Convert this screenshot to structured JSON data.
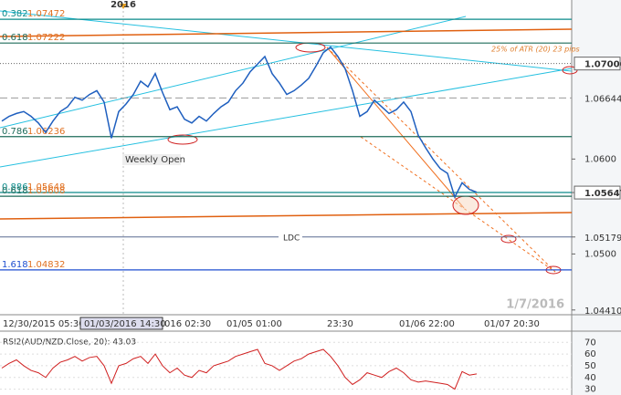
{
  "chart_data": [
    {
      "type": "line",
      "color": "#1f5fbf",
      "values": [
        1.064,
        1.0645,
        1.0648,
        1.065,
        1.0645,
        1.0638,
        1.0628,
        1.064,
        1.065,
        1.0655,
        1.0665,
        1.0662,
        1.0668,
        1.0672,
        1.066,
        1.0622,
        1.065,
        1.0658,
        1.0668,
        1.0682,
        1.0676,
        1.069,
        1.067,
        1.0652,
        1.0655,
        1.0642,
        1.0638,
        1.0645,
        1.064,
        1.0648,
        1.0655,
        1.066,
        1.0672,
        1.068,
        1.0692,
        1.07,
        1.0708,
        1.069,
        1.068,
        1.0668,
        1.0672,
        1.0678,
        1.0685,
        1.0698,
        1.0712,
        1.0718,
        1.0708,
        1.0695,
        1.0672,
        1.0645,
        1.065,
        1.0662,
        1.0655,
        1.0648,
        1.0652,
        1.066,
        1.065,
        1.0625,
        1.0612,
        1.06,
        1.059,
        1.0585,
        1.056,
        1.0575,
        1.0568,
        1.0565
      ],
      "ylim": [
        1.0436,
        1.0756
      ],
      "yticks": [
        {
          "value": 1.06,
          "label": "1.0600"
        },
        {
          "value": 1.05,
          "label": "1.0500"
        }
      ],
      "price_markers": [
        {
          "value": 1.07006,
          "label": "1.07006",
          "boxed": true
        },
        {
          "value": 1.06644,
          "label": "1.06644",
          "boxed": false
        },
        {
          "value": 1.05647,
          "label": "1.05647",
          "boxed": true
        },
        {
          "value": 1.05179,
          "label": "1.05179",
          "boxed": false
        },
        {
          "value": 1.0441,
          "label": "1.04410",
          "boxed": false
        }
      ],
      "levels": [
        {
          "ratio": "0.382",
          "value": 1.07472,
          "label": "1.07472",
          "color": "#0a8a8a"
        },
        {
          "ratio": "0.618",
          "value": 1.07222,
          "label": "1.07222",
          "color": "#1d6b5a"
        },
        {
          "ratio": "0.786",
          "value": 1.06236,
          "label": "1.06236",
          "color": "#1d6b5a"
        },
        {
          "ratio": "0.886",
          "value": 1.05648,
          "label": "1.05648",
          "color": "#0a8a8a"
        },
        {
          "ratio": "0.618",
          "value": 1.05608,
          "label": "1.05608",
          "color": "#1d6b5a"
        },
        {
          "ratio": "1.618",
          "value": 1.04832,
          "label": "1.04832",
          "color": "#1f4fd0"
        }
      ],
      "ldc": {
        "value": 1.05179,
        "label": "LDC"
      },
      "x_labels": [
        "12/30/2015 05:30",
        "01/03/2016 14:30",
        "016 02:30",
        "01/05 01:00",
        "23:30",
        "01/06 22:00",
        "01/07 20:30"
      ],
      "annotations": {
        "year": "2016",
        "weekly_open": "Weekly Open",
        "atr": "25% of ATR (20) 23 pips",
        "date": "1/7/2016"
      }
    },
    {
      "type": "line",
      "title": "RSI2(AUD/NZD.Close, 20): 43.03",
      "color": "#d02020",
      "values": [
        48,
        52,
        55,
        50,
        46,
        44,
        40,
        48,
        53,
        55,
        58,
        54,
        57,
        58,
        50,
        35,
        50,
        52,
        56,
        58,
        52,
        60,
        50,
        44,
        48,
        42,
        40,
        46,
        44,
        50,
        52,
        54,
        58,
        60,
        62,
        64,
        52,
        50,
        46,
        50,
        54,
        56,
        60,
        62,
        64,
        58,
        50,
        40,
        34,
        38,
        44,
        42,
        40,
        45,
        48,
        44,
        38,
        36,
        37,
        36,
        35,
        34,
        30,
        45,
        42,
        43.03
      ],
      "ylim": [
        25,
        78
      ],
      "yticks": [
        30,
        40,
        50,
        60,
        70
      ]
    }
  ]
}
